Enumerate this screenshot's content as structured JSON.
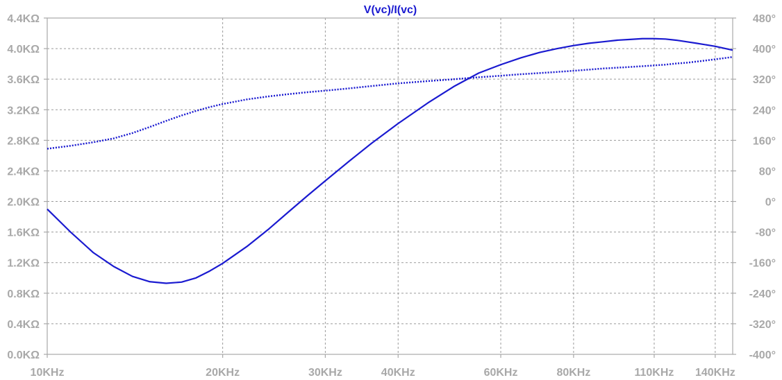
{
  "chart_data": {
    "type": "line",
    "title": "V(vc)/I(vc)",
    "xlabel": "",
    "ylabel": "",
    "x_scale": "log",
    "xlim": [
      10000,
      150000
    ],
    "ylim": [
      0,
      4400
    ],
    "y2lim": [
      -400,
      480
    ],
    "grid": true,
    "x_ticks": [
      {
        "value": 10000,
        "label": "10KHz"
      },
      {
        "value": 20000,
        "label": "20KHz"
      },
      {
        "value": 30000,
        "label": "30KHz"
      },
      {
        "value": 40000,
        "label": "40KHz"
      },
      {
        "value": 60000,
        "label": "60KHz"
      },
      {
        "value": 80000,
        "label": "80KHz"
      },
      {
        "value": 110000,
        "label": "110KHz"
      },
      {
        "value": 140000,
        "label": "140KHz"
      }
    ],
    "y_ticks": [
      {
        "value": 0,
        "label": "0.0KΩ"
      },
      {
        "value": 400,
        "label": "0.4KΩ"
      },
      {
        "value": 800,
        "label": "0.8KΩ"
      },
      {
        "value": 1200,
        "label": "1.2KΩ"
      },
      {
        "value": 1600,
        "label": "1.6KΩ"
      },
      {
        "value": 2000,
        "label": "2.0KΩ"
      },
      {
        "value": 2400,
        "label": "2.4KΩ"
      },
      {
        "value": 2800,
        "label": "2.8KΩ"
      },
      {
        "value": 3200,
        "label": "3.2KΩ"
      },
      {
        "value": 3600,
        "label": "3.6KΩ"
      },
      {
        "value": 4000,
        "label": "4.0KΩ"
      },
      {
        "value": 4400,
        "label": "4.4KΩ"
      }
    ],
    "y2_ticks": [
      {
        "value": -400,
        "label": "-400°"
      },
      {
        "value": -320,
        "label": "-320°"
      },
      {
        "value": -240,
        "label": "-240°"
      },
      {
        "value": -160,
        "label": "-160°"
      },
      {
        "value": -80,
        "label": "-80°"
      },
      {
        "value": 0,
        "label": "0°"
      },
      {
        "value": 80,
        "label": "80°"
      },
      {
        "value": 160,
        "label": "160°"
      },
      {
        "value": 240,
        "label": "240°"
      },
      {
        "value": 320,
        "label": "320°"
      },
      {
        "value": 400,
        "label": "400°"
      },
      {
        "value": 480,
        "label": "480°"
      }
    ],
    "series": [
      {
        "style": "solid",
        "axis": "left",
        "color": "#1a1ad0",
        "x": [
          10000,
          11000,
          12000,
          13000,
          14000,
          15000,
          16000,
          17000,
          18000,
          19000,
          20000,
          22000,
          24000,
          26000,
          28000,
          30000,
          33000,
          36000,
          40000,
          45000,
          50000,
          55000,
          60000,
          65000,
          70000,
          75000,
          80000,
          85000,
          90000,
          95000,
          100000,
          105000,
          110000,
          115000,
          120000,
          125000,
          130000,
          140000,
          150000
        ],
        "y": [
          1900,
          1590,
          1330,
          1150,
          1020,
          950,
          930,
          945,
          1000,
          1090,
          1190,
          1410,
          1640,
          1870,
          2080,
          2270,
          2530,
          2760,
          3020,
          3290,
          3510,
          3680,
          3790,
          3880,
          3950,
          4000,
          4040,
          4070,
          4090,
          4110,
          4120,
          4130,
          4130,
          4125,
          4110,
          4090,
          4070,
          4030,
          3980
        ]
      },
      {
        "style": "dotted",
        "axis": "right",
        "color": "#1a1ad0",
        "x": [
          10000,
          11000,
          12000,
          13000,
          14000,
          15000,
          16000,
          17000,
          18000,
          19000,
          20000,
          22000,
          24000,
          26000,
          28000,
          30000,
          33000,
          36000,
          40000,
          45000,
          50000,
          55000,
          60000,
          65000,
          70000,
          75000,
          80000,
          85000,
          90000,
          95000,
          100000,
          105000,
          110000,
          115000,
          120000,
          125000,
          130000,
          140000,
          150000
        ],
        "y": [
          138,
          146,
          155,
          165,
          179,
          195,
          211,
          225,
          237,
          247,
          255,
          267,
          275,
          281,
          286,
          290,
          296,
          302,
          309,
          315,
          320,
          325,
          329,
          333,
          336,
          339,
          342,
          345,
          348,
          350,
          352,
          354,
          356,
          358,
          361,
          363,
          366,
          372,
          378
        ]
      }
    ]
  }
}
